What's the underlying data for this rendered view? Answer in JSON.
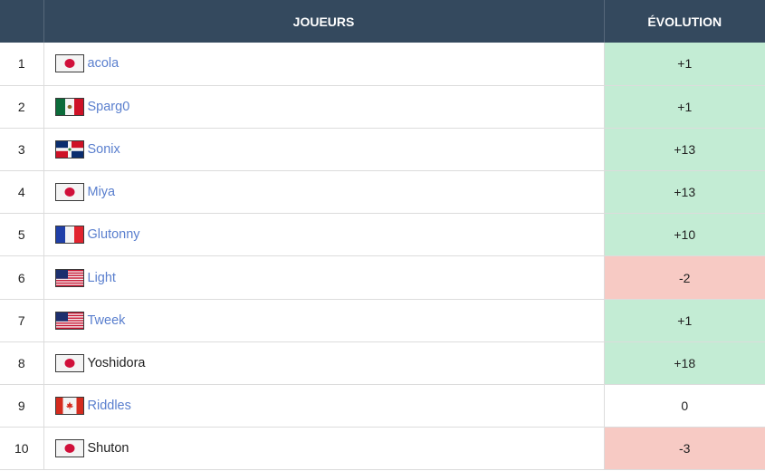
{
  "table": {
    "header": {
      "rank": "",
      "player": "JOUEURS",
      "evolution": "ÉVOLUTION"
    },
    "rows": [
      {
        "rank": "1",
        "flag": "jp-flag-icon",
        "player": "acola",
        "linked": true,
        "evolution": "+1",
        "trend": "up"
      },
      {
        "rank": "2",
        "flag": "mx-flag-icon",
        "player": "Sparg0",
        "linked": true,
        "evolution": "+1",
        "trend": "up"
      },
      {
        "rank": "3",
        "flag": "do-flag-icon",
        "player": "Sonix",
        "linked": true,
        "evolution": "+13",
        "trend": "up"
      },
      {
        "rank": "4",
        "flag": "jp-flag-icon",
        "player": "Miya",
        "linked": true,
        "evolution": "+13",
        "trend": "up"
      },
      {
        "rank": "5",
        "flag": "fr-flag-icon",
        "player": "Glutonny",
        "linked": true,
        "evolution": "+10",
        "trend": "up"
      },
      {
        "rank": "6",
        "flag": "us-flag-icon",
        "player": "Light",
        "linked": true,
        "evolution": "-2",
        "trend": "down"
      },
      {
        "rank": "7",
        "flag": "us-flag-icon",
        "player": "Tweek",
        "linked": true,
        "evolution": "+1",
        "trend": "up"
      },
      {
        "rank": "8",
        "flag": "jp-flag-icon",
        "player": "Yoshidora",
        "linked": false,
        "evolution": "+18",
        "trend": "up"
      },
      {
        "rank": "9",
        "flag": "ca-flag-icon",
        "player": "Riddles",
        "linked": true,
        "evolution": "0",
        "trend": "same"
      },
      {
        "rank": "10",
        "flag": "jp-flag-icon",
        "player": "Shuton",
        "linked": false,
        "evolution": "-3",
        "trend": "down"
      }
    ]
  },
  "colors": {
    "header_bg": "#34495e",
    "link": "#5a7fce",
    "up_bg": "#c3ecd4",
    "down_bg": "#f7cac4"
  }
}
